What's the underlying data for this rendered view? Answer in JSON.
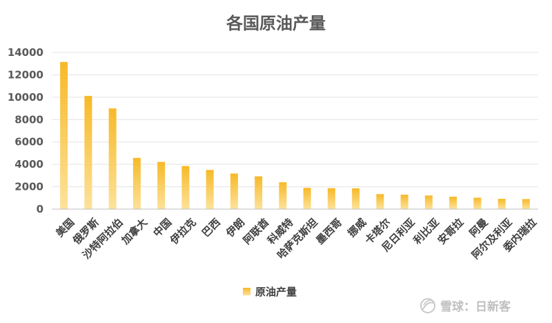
{
  "chart_data": {
    "type": "bar",
    "title": "各国原油产量",
    "xlabel": "",
    "ylabel": "",
    "ylim": [
      0,
      14000
    ],
    "yticks": [
      0,
      2000,
      4000,
      6000,
      8000,
      10000,
      12000,
      14000
    ],
    "grid": true,
    "legend_position": "bottom",
    "categories": [
      "美国",
      "俄罗斯",
      "沙特阿拉伯",
      "加拿大",
      "中国",
      "伊拉克",
      "巴西",
      "伊朗",
      "阿联酋",
      "科威特",
      "哈萨克斯坦",
      "墨西哥",
      "挪威",
      "卡塔尔",
      "尼日利亚",
      "利比亚",
      "安哥拉",
      "阿曼",
      "阿尔及利亚",
      "委内瑞拉"
    ],
    "series": [
      {
        "name": "原油产量",
        "values": [
          13150,
          10120,
          9000,
          4580,
          4220,
          3850,
          3500,
          3180,
          2930,
          2400,
          1900,
          1870,
          1860,
          1340,
          1290,
          1220,
          1110,
          1020,
          920,
          900
        ]
      }
    ],
    "colors": {
      "bar_top": "#f7b928",
      "bar_bottom": "#fde29a",
      "legend_top": "#f7b928",
      "legend_bottom": "#fde29a"
    }
  },
  "watermark": {
    "text": "雪球：日新客",
    "icon": "snowball-logo-icon"
  }
}
